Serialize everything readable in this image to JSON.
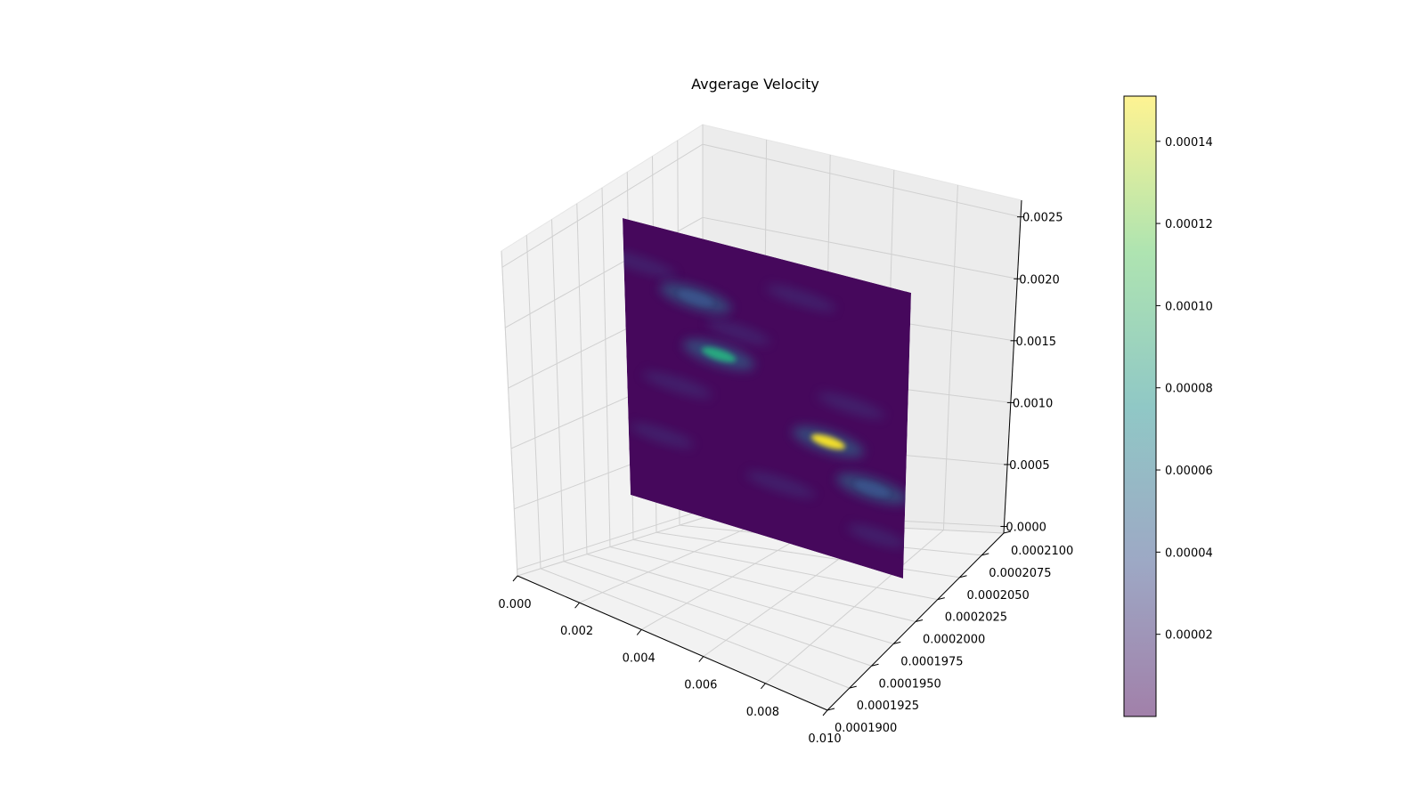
{
  "chart_data": {
    "type": "surface3d",
    "title": "Avgerage Velocity",
    "xlabel": "",
    "ylabel": "",
    "zlabel": "",
    "x_ticks": [
      "0.000",
      "0.002",
      "0.004",
      "0.006",
      "0.008",
      "0.010"
    ],
    "x_tick_values": [
      0.0,
      0.002,
      0.004,
      0.006,
      0.008,
      0.01
    ],
    "y_ticks": [
      "0.0001900",
      "0.0001925",
      "0.0001950",
      "0.0001975",
      "0.0002000",
      "0.0002025",
      "0.0002050",
      "0.0002075",
      "0.0002100"
    ],
    "y_tick_values": [
      0.00019,
      0.0001925,
      0.000195,
      0.0001975,
      0.0002,
      0.0002025,
      0.000205,
      0.0002075,
      0.00021
    ],
    "z_ticks": [
      "0.0000",
      "0.0005",
      "0.0010",
      "0.0015",
      "0.0020",
      "0.0025"
    ],
    "z_tick_values": [
      0.0,
      0.0005,
      0.001,
      0.0015,
      0.002,
      0.0025
    ],
    "xlim": [
      0.0,
      0.01
    ],
    "ylim": [
      0.00019,
      0.00021
    ],
    "zlim": [
      0.0,
      0.0025
    ],
    "colormap": "viridis",
    "colorbar": {
      "ticks": [
        "0.00002",
        "0.00004",
        "0.00006",
        "0.00008",
        "0.00010",
        "0.00012",
        "0.00014"
      ],
      "tick_values": [
        2e-05,
        4e-05,
        6e-05,
        8e-05,
        0.0001,
        0.00012,
        0.00014
      ],
      "range": [
        0.0,
        0.000151
      ],
      "alpha": 0.5
    },
    "surface": {
      "base_value": 4e-06,
      "hotspots": [
        {
          "u": 0.33,
          "v": 0.4,
          "value": 0.0001
        },
        {
          "u": 0.72,
          "v": 0.6,
          "value": 0.00015
        },
        {
          "u": 0.25,
          "v": 0.22,
          "value": 4e-05
        },
        {
          "u": 0.88,
          "v": 0.72,
          "value": 4e-05
        }
      ]
    },
    "grid": true
  }
}
